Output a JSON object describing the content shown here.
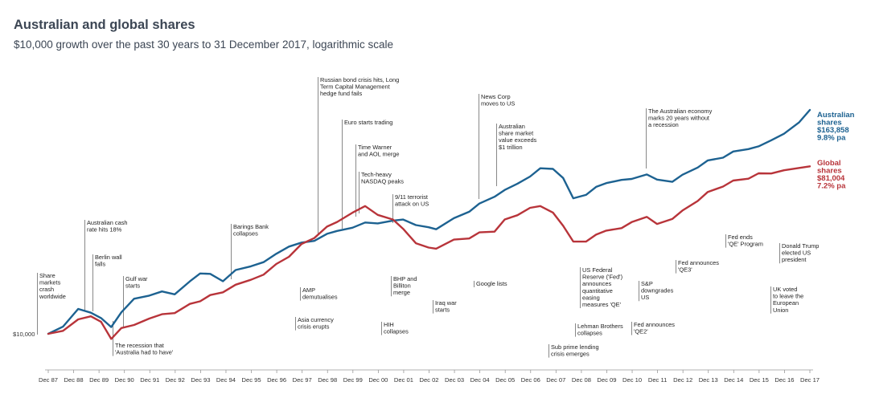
{
  "title": "Australian and global shares",
  "subtitle": "$10,000 growth over the past 30 years to 31 December 2017, logarithmic scale",
  "chart_data": {
    "type": "line",
    "yscale": "log",
    "ylim": [
      8500,
      220000
    ],
    "start_label": "$10,000",
    "x_ticks": [
      "Dec 87",
      "Dec 88",
      "Dec 89",
      "Dec 90",
      "Dec 91",
      "Dec 92",
      "Dec 93",
      "Dec 94",
      "Dec 95",
      "Dec 96",
      "Dec 97",
      "Dec 98",
      "Dec 99",
      "Dec 00",
      "Dec 01",
      "Dec 02",
      "Dec 03",
      "Dec 04",
      "Dec 05",
      "Dec 06",
      "Dec 07",
      "Dec 08",
      "Dec 09",
      "Dec 10",
      "Dec 11",
      "Dec 12",
      "Dec 13",
      "Dec 14",
      "Dec 15",
      "Dec 16",
      "Dec 17"
    ],
    "series": [
      {
        "name": "Australian shares",
        "end_lines": [
          "Australian",
          "shares",
          "$163,858",
          "9.8% pa"
        ],
        "color": "#1d6291",
        "x": [
          1987.92,
          1988.5,
          1989.1,
          1989.6,
          1990.0,
          1990.4,
          1990.8,
          1991.3,
          1991.9,
          1992.4,
          1992.9,
          1993.5,
          1993.9,
          1994.3,
          1994.8,
          1995.3,
          1995.9,
          1996.4,
          1996.9,
          1997.4,
          1997.9,
          1998.4,
          1998.9,
          1999.3,
          1999.9,
          2000.4,
          2000.9,
          2001.5,
          2001.9,
          2002.4,
          2002.9,
          2003.2,
          2003.9,
          2004.5,
          2004.9,
          2005.5,
          2005.9,
          2006.4,
          2006.9,
          2007.3,
          2007.8,
          2008.2,
          2008.6,
          2009.1,
          2009.5,
          2009.9,
          2010.5,
          2010.9,
          2011.5,
          2011.9,
          2012.5,
          2012.9,
          2013.5,
          2013.9,
          2014.5,
          2014.9,
          2015.5,
          2015.9,
          2016.4,
          2016.9,
          2017.5,
          2017.92
        ],
        "values": [
          10000,
          11000,
          13500,
          13200,
          12000,
          11000,
          13000,
          15500,
          16200,
          16800,
          16600,
          19000,
          21500,
          21000,
          19300,
          22300,
          23000,
          24800,
          26800,
          30100,
          31000,
          32000,
          35000,
          35800,
          38100,
          39600,
          40200,
          40800,
          41800,
          39000,
          37500,
          37400,
          41800,
          46500,
          50400,
          55600,
          60500,
          64700,
          72200,
          78000,
          79500,
          69400,
          54600,
          56800,
          62200,
          66500,
          67400,
          70100,
          72500,
          69000,
          66800,
          72400,
          80700,
          86000,
          91500,
          96500,
          101000,
          104000,
          111500,
          123000,
          138500,
          163858
        ]
      },
      {
        "name": "Global shares",
        "end_lines": [
          "Global",
          "shares",
          "$81,004",
          "7.2% pa"
        ],
        "color": "#b8343a",
        "x": [
          1987.92,
          1988.5,
          1989.1,
          1989.6,
          1990.0,
          1990.4,
          1990.8,
          1991.3,
          1991.9,
          1992.4,
          1992.9,
          1993.5,
          1993.9,
          1994.3,
          1994.8,
          1995.3,
          1995.9,
          1996.4,
          1996.9,
          1997.4,
          1997.9,
          1998.4,
          1998.9,
          1999.3,
          1999.9,
          2000.4,
          2000.9,
          2001.5,
          2001.9,
          2002.4,
          2002.9,
          2003.2,
          2003.9,
          2004.5,
          2004.9,
          2005.5,
          2005.9,
          2006.4,
          2006.9,
          2007.3,
          2007.8,
          2008.2,
          2008.6,
          2009.1,
          2009.5,
          2009.9,
          2010.5,
          2010.9,
          2011.5,
          2011.9,
          2012.5,
          2012.9,
          2013.5,
          2013.9,
          2014.5,
          2014.9,
          2015.5,
          2015.9,
          2016.4,
          2016.9,
          2017.5,
          2017.92
        ],
        "values": [
          10000,
          10300,
          12000,
          12500,
          11500,
          9500,
          10600,
          11300,
          12000,
          12800,
          13000,
          14400,
          15200,
          16000,
          17000,
          18300,
          19700,
          21000,
          23700,
          26500,
          30300,
          33500,
          37800,
          40600,
          45500,
          48900,
          44700,
          41100,
          37600,
          30700,
          29500,
          29000,
          32200,
          33300,
          35000,
          36300,
          41300,
          44200,
          48300,
          49000,
          46000,
          38000,
          32100,
          31300,
          34700,
          36300,
          37200,
          40800,
          42500,
          40000,
          41500,
          46900,
          52500,
          58500,
          63600,
          66900,
          70400,
          73400,
          74600,
          77000,
          79000,
          81004
        ]
      }
    ],
    "annotations": [
      {
        "x": 1987.92,
        "text": [
          "Share",
          "markets",
          "crash",
          "worldwide"
        ]
      },
      {
        "x": 1989.75,
        "text": [
          "Australian cash",
          "rate hits 18%"
        ]
      },
      {
        "x": 1989.92,
        "text": [
          "Berlin wall",
          "falls"
        ]
      },
      {
        "x": 1990.9,
        "text": [
          "Gulf war",
          "starts"
        ]
      },
      {
        "x": 1990.9,
        "text": [
          "The recession that",
          "'Australia had to have'"
        ]
      },
      {
        "x": 1995.2,
        "text": [
          "Barings Bank",
          "collapses"
        ]
      },
      {
        "x": 1997.9,
        "text": [
          "AMP",
          "demutualises"
        ]
      },
      {
        "x": 1997.5,
        "text": [
          "Asia currency",
          "crisis erupts"
        ]
      },
      {
        "x": 1998.7,
        "text": [
          "Russian bond crisis hits, Long",
          "Term Capital Management",
          "hedge fund fails"
        ]
      },
      {
        "x": 1999.0,
        "text": [
          "Euro starts trading"
        ]
      },
      {
        "x": 2000.1,
        "text": [
          "Time Warner",
          "and AOL merge"
        ]
      },
      {
        "x": 2000.2,
        "text": [
          "Tech-heavy",
          "NASDAQ peaks"
        ]
      },
      {
        "x": 2001.2,
        "text": [
          "HIH",
          "collapses"
        ]
      },
      {
        "x": 2001.5,
        "text": [
          "BHP and",
          "Billiton",
          "merge"
        ]
      },
      {
        "x": 2001.7,
        "text": [
          "9/11 terrorist",
          "attack on US"
        ]
      },
      {
        "x": 2003.2,
        "text": [
          "Iraq war",
          "starts"
        ]
      },
      {
        "x": 2004.6,
        "text": [
          "Google lists"
        ]
      },
      {
        "x": 2004.9,
        "text": [
          "News Corp",
          "moves to US"
        ]
      },
      {
        "x": 2006.3,
        "text": [
          "Australian",
          "share market",
          "value exceeds",
          "$1 trillion"
        ]
      },
      {
        "x": 2007.6,
        "text": [
          "Sub prime lending",
          "crisis emerges"
        ]
      },
      {
        "x": 2008.7,
        "text": [
          "Lehman Brothers",
          "collapses"
        ]
      },
      {
        "x": 2008.9,
        "text": [
          "US Federal",
          "Reserve ('Fed')",
          "announces",
          "quantitative",
          "easing",
          "measures 'QE'"
        ]
      },
      {
        "x": 2010.9,
        "text": [
          "Fed announces",
          "'QE2'"
        ]
      },
      {
        "x": 2011.6,
        "text": [
          "S&P",
          "downgrades",
          "US"
        ]
      },
      {
        "x": 2011.5,
        "text": [
          "The Australian economy",
          "marks 20 years without",
          "a recession"
        ]
      },
      {
        "x": 2012.75,
        "text": [
          "Fed announces",
          "'QE3'"
        ]
      },
      {
        "x": 2014.8,
        "text": [
          "Fed ends",
          "'QE' Program"
        ]
      },
      {
        "x": 2016.5,
        "text": [
          "UK voted",
          "to leave the",
          "European",
          "Union"
        ]
      },
      {
        "x": 2016.9,
        "text": [
          "Donald Trump",
          "elected US",
          "president"
        ]
      }
    ]
  }
}
